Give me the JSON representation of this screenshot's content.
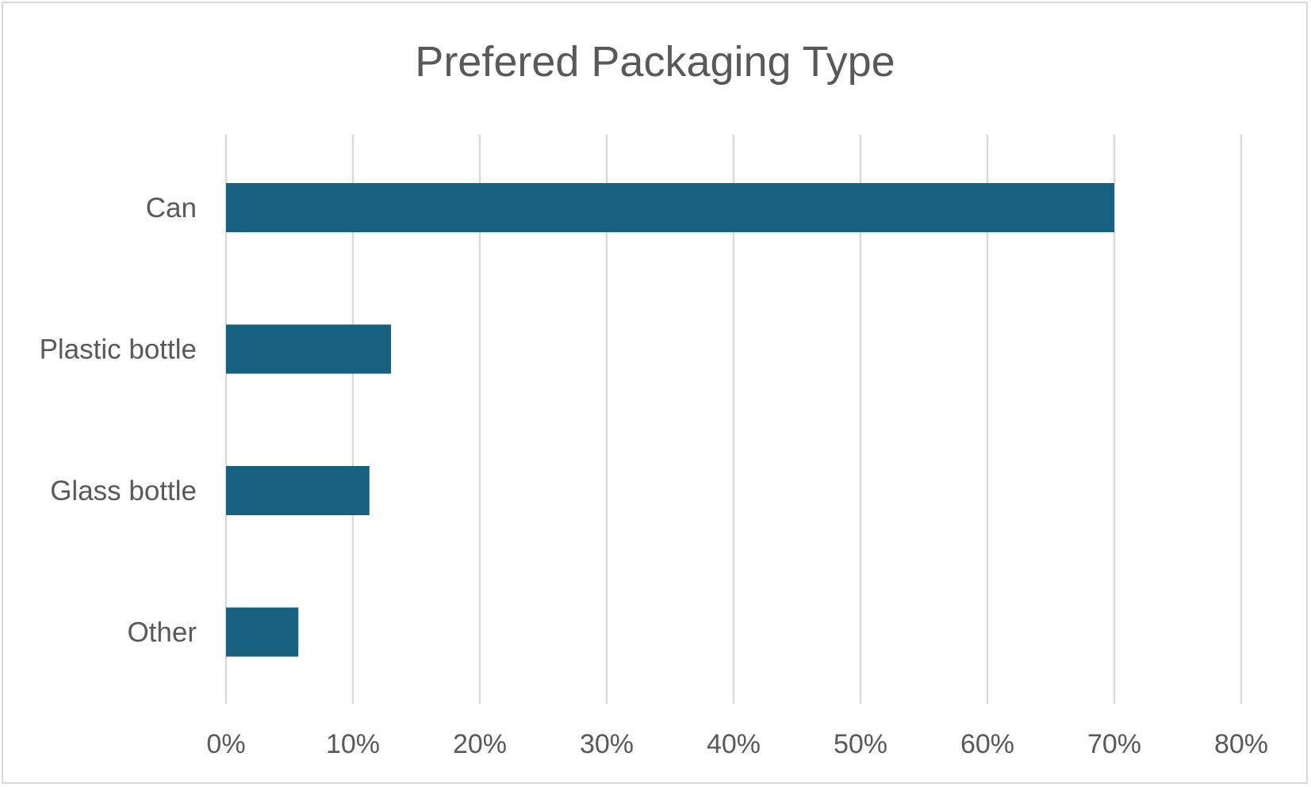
{
  "chart_data": {
    "type": "bar",
    "orientation": "horizontal",
    "title": "Prefered Packaging Type",
    "xlabel": "",
    "ylabel": "",
    "categories": [
      "Can",
      "Plastic bottle",
      "Glass bottle",
      "Other"
    ],
    "values": [
      70,
      13,
      11.3,
      5.7
    ],
    "xlim": [
      0,
      80
    ],
    "ticks": [
      "0%",
      "10%",
      "20%",
      "30%",
      "40%",
      "50%",
      "60%",
      "70%",
      "80%"
    ],
    "grid": true,
    "legend": "none",
    "bar_color": "#17607f"
  }
}
